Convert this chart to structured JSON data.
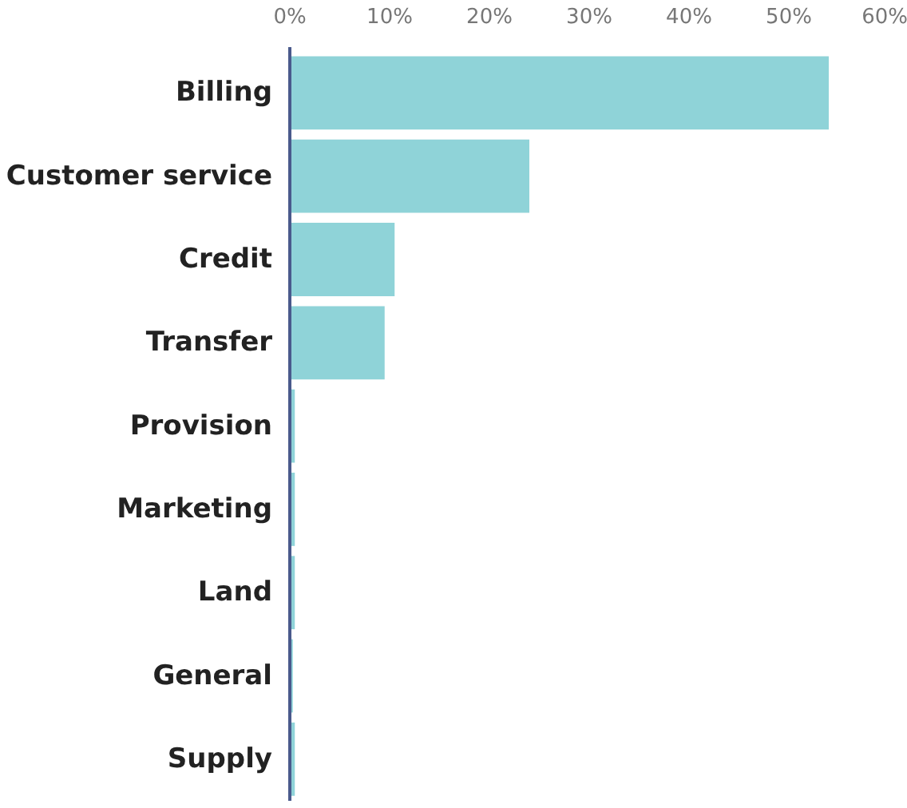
{
  "chart_data": {
    "type": "bar",
    "orientation": "horizontal",
    "categories": [
      "Billing",
      "Customer service",
      "Credit",
      "Transfer",
      "Provision",
      "Marketing",
      "Land",
      "General",
      "Supply"
    ],
    "values": [
      54,
      24,
      10.5,
      9.5,
      0.5,
      0.5,
      0.5,
      0.3,
      0.5
    ],
    "color": "#8fd3d8",
    "xlim": [
      0,
      60
    ],
    "xticks": [
      {
        "value": 0,
        "label": "0%"
      },
      {
        "value": 10,
        "label": "10%"
      },
      {
        "value": 20,
        "label": "20%"
      },
      {
        "value": 30,
        "label": "30%"
      },
      {
        "value": 40,
        "label": "40%"
      },
      {
        "value": 50,
        "label": "50%"
      },
      {
        "value": 60,
        "label": "60%"
      }
    ],
    "grid": false
  }
}
